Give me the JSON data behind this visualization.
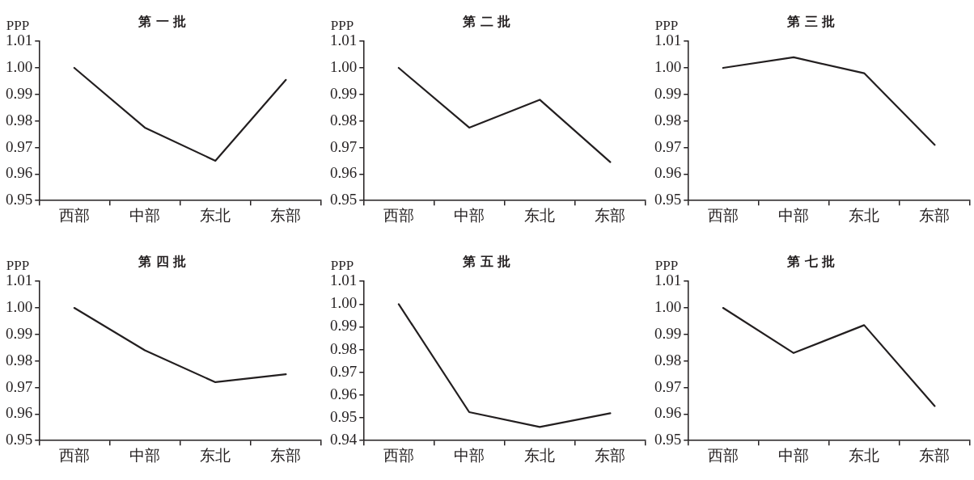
{
  "chart_data": [
    {
      "type": "line",
      "title": "第 一 批",
      "ylabel": "PPP",
      "categories": [
        "西部",
        "中部",
        "东北",
        "东部"
      ],
      "series": [
        {
          "color": "#231f20",
          "values": [
            1.0,
            0.9775,
            0.965,
            0.9955
          ]
        }
      ],
      "ylim": [
        0.95,
        1.01
      ],
      "yticks": [
        {
          "value": 0.95,
          "label": "0.95"
        },
        {
          "value": 0.96,
          "label": "0.96"
        },
        {
          "value": 0.97,
          "label": "0.97"
        },
        {
          "value": 0.98,
          "label": "0.98"
        },
        {
          "value": 0.99,
          "label": "0.99"
        },
        {
          "value": 1.0,
          "label": "1.00"
        },
        {
          "value": 1.01,
          "label": "1.01"
        }
      ],
      "marker": "none"
    },
    {
      "type": "line",
      "title": "第 二 批",
      "ylabel": "PPP",
      "categories": [
        "西部",
        "中部",
        "东北",
        "东部"
      ],
      "series": [
        {
          "color": "#231f20",
          "values": [
            1.0,
            0.9775,
            0.988,
            0.9645
          ]
        }
      ],
      "ylim": [
        0.95,
        1.01
      ],
      "yticks": [
        {
          "value": 0.95,
          "label": "0.95"
        },
        {
          "value": 0.96,
          "label": "0.96"
        },
        {
          "value": 0.97,
          "label": "0.97"
        },
        {
          "value": 0.98,
          "label": "0.98"
        },
        {
          "value": 0.99,
          "label": "0.99"
        },
        {
          "value": 1.0,
          "label": "1.00"
        },
        {
          "value": 1.01,
          "label": "1.01"
        }
      ],
      "marker": "none"
    },
    {
      "type": "line",
      "title": "第 三 批",
      "ylabel": "PPP",
      "categories": [
        "西部",
        "中部",
        "东北",
        "东部"
      ],
      "series": [
        {
          "color": "#231f20",
          "values": [
            1.0,
            1.004,
            0.998,
            0.971
          ]
        }
      ],
      "ylim": [
        0.95,
        1.01
      ],
      "yticks": [
        {
          "value": 0.95,
          "label": "0.95"
        },
        {
          "value": 0.96,
          "label": "0.96"
        },
        {
          "value": 0.97,
          "label": "0.97"
        },
        {
          "value": 0.98,
          "label": "0.98"
        },
        {
          "value": 0.99,
          "label": "0.99"
        },
        {
          "value": 1.0,
          "label": "1.00"
        },
        {
          "value": 1.01,
          "label": "1.01"
        }
      ],
      "marker": "none"
    },
    {
      "type": "line",
      "title": "第 四 批",
      "ylabel": "PPP",
      "categories": [
        "西部",
        "中部",
        "东北",
        "东部"
      ],
      "series": [
        {
          "color": "#231f20",
          "values": [
            1.0,
            0.984,
            0.972,
            0.975
          ]
        }
      ],
      "ylim": [
        0.95,
        1.01
      ],
      "yticks": [
        {
          "value": 0.95,
          "label": "0.95"
        },
        {
          "value": 0.96,
          "label": "0.96"
        },
        {
          "value": 0.97,
          "label": "0.97"
        },
        {
          "value": 0.98,
          "label": "0.98"
        },
        {
          "value": 0.99,
          "label": "0.99"
        },
        {
          "value": 1.0,
          "label": "1.00"
        },
        {
          "value": 1.01,
          "label": "1.01"
        }
      ],
      "marker": "none"
    },
    {
      "type": "line",
      "title": "第 五 批",
      "ylabel": "PPP",
      "categories": [
        "西部",
        "中部",
        "东北",
        "东部"
      ],
      "series": [
        {
          "color": "#231f20",
          "values": [
            1.0,
            0.9525,
            0.946,
            0.952
          ]
        }
      ],
      "ylim": [
        0.94,
        1.01
      ],
      "yticks": [
        {
          "value": 0.94,
          "label": "0.94"
        },
        {
          "value": 0.95,
          "label": "0.95"
        },
        {
          "value": 0.96,
          "label": "0.96"
        },
        {
          "value": 0.97,
          "label": "0.97"
        },
        {
          "value": 0.98,
          "label": "0.98"
        },
        {
          "value": 0.99,
          "label": "0.99"
        },
        {
          "value": 1.0,
          "label": "1.00"
        },
        {
          "value": 1.01,
          "label": "1.01"
        }
      ],
      "marker": "none"
    },
    {
      "type": "line",
      "title": "第 七 批",
      "ylabel": "PPP",
      "categories": [
        "西部",
        "中部",
        "东北",
        "东部"
      ],
      "series": [
        {
          "color": "#231f20",
          "values": [
            1.0,
            0.983,
            0.9935,
            0.963
          ]
        }
      ],
      "ylim": [
        0.95,
        1.01
      ],
      "yticks": [
        {
          "value": 0.95,
          "label": "0.95"
        },
        {
          "value": 0.96,
          "label": "0.96"
        },
        {
          "value": 0.97,
          "label": "0.97"
        },
        {
          "value": 0.98,
          "label": "0.98"
        },
        {
          "value": 0.99,
          "label": "0.99"
        },
        {
          "value": 1.0,
          "label": "1.00"
        },
        {
          "value": 1.01,
          "label": "1.01"
        }
      ],
      "marker": "none"
    }
  ]
}
